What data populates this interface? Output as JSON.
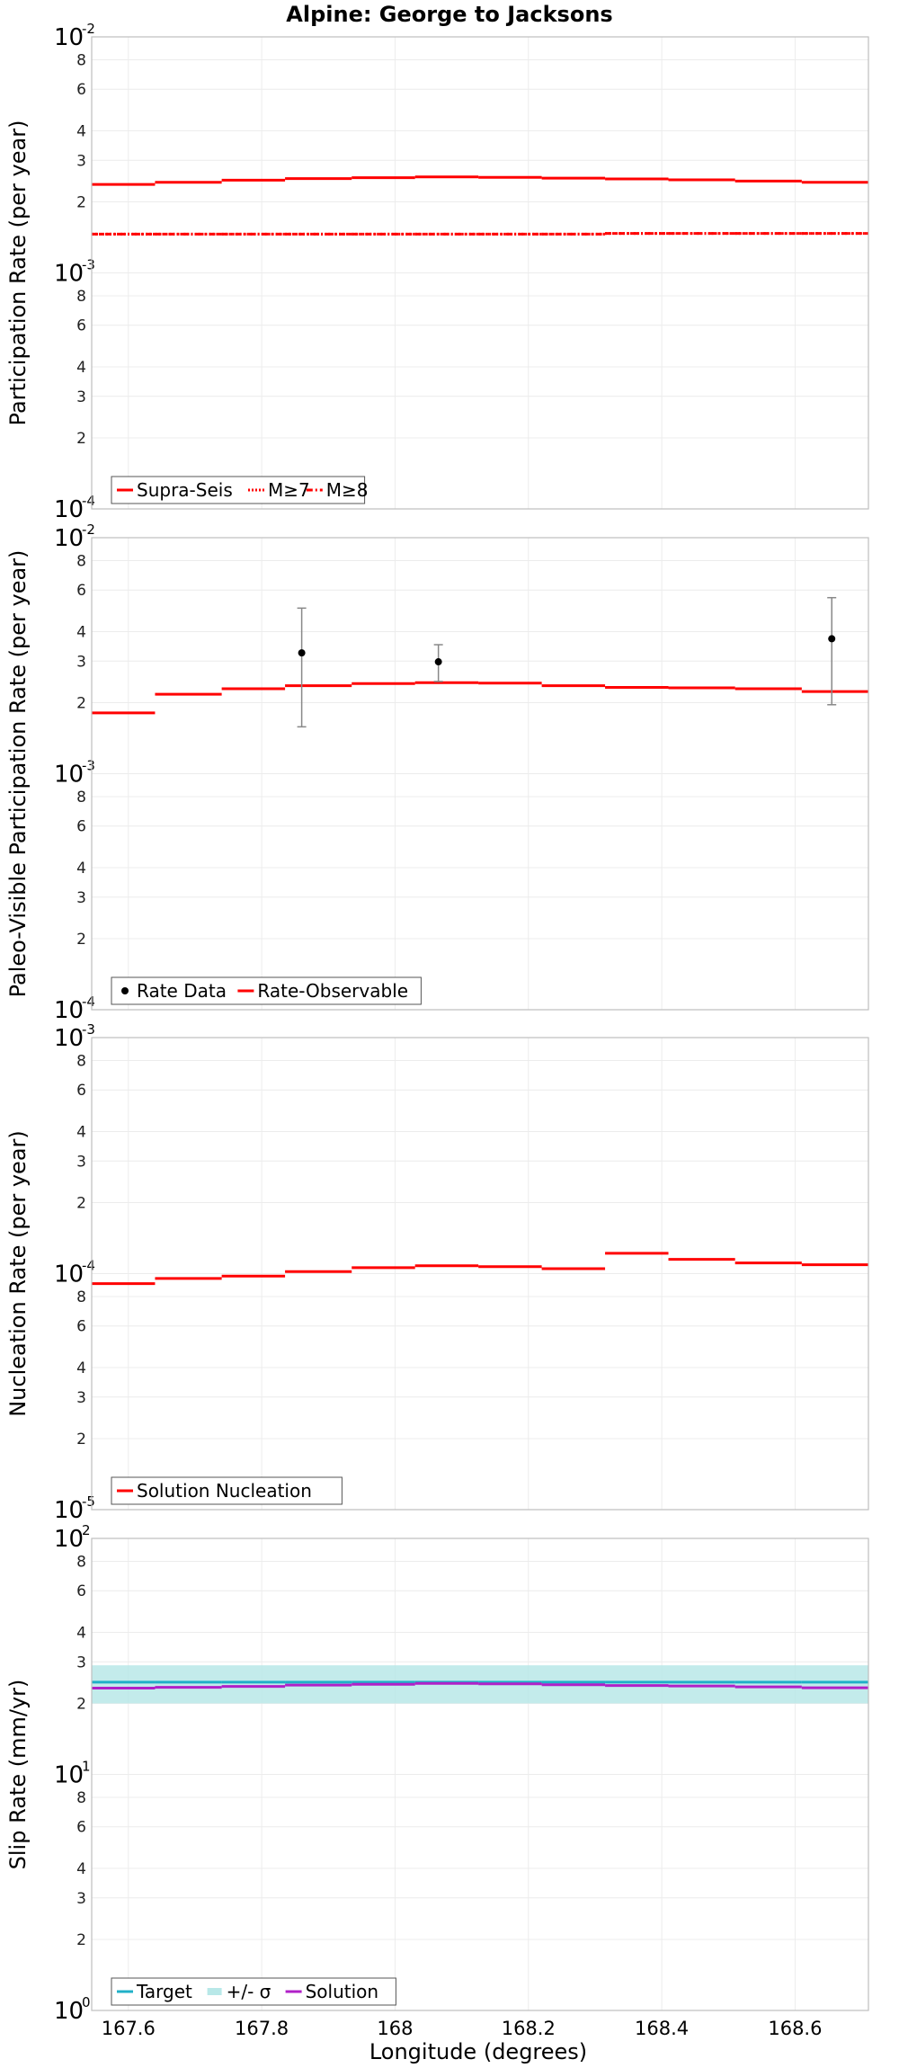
{
  "chart_data": [
    {
      "type": "step-line",
      "title": "Alpine: George to Jacksons",
      "ylabel": "Participation Rate (per year)",
      "xlabel": "",
      "xlim": [
        167.545,
        168.71
      ],
      "yscale": "log",
      "ylim": [
        0.0001,
        0.01
      ],
      "x_ticks": [
        "167.6",
        "167.8",
        "168",
        "168.2",
        "168.4",
        "168.6"
      ],
      "x_tick_values": [
        167.6,
        167.8,
        168.0,
        168.2,
        168.4,
        168.6
      ],
      "y_major_ticks": [
        {
          "base": "10",
          "exp": "-2"
        },
        {
          "base": "10",
          "exp": "-3"
        },
        {
          "base": "10",
          "exp": "-4"
        }
      ],
      "y_minor_ticks": [
        "8",
        "6",
        "4",
        "3",
        "2"
      ],
      "x_bins": [
        167.545,
        167.64,
        167.74,
        167.835,
        167.935,
        168.03,
        168.125,
        168.22,
        168.315,
        168.41,
        168.51,
        168.61,
        168.71
      ],
      "series": [
        {
          "name": "Supra-Seis",
          "style": "solid",
          "color": "#ff0000",
          "values": [
            0.00237,
            0.00242,
            0.00247,
            0.00251,
            0.00253,
            0.00255,
            0.00254,
            0.00252,
            0.0025,
            0.00248,
            0.00245,
            0.00242
          ]
        },
        {
          "name": "M≥7",
          "style": "dotted",
          "color": "#ff0000",
          "values": [
            0.00146,
            0.00146,
            0.00146,
            0.00146,
            0.00146,
            0.00146,
            0.00146,
            0.00146,
            0.00147,
            0.00147,
            0.00147,
            0.00147
          ]
        },
        {
          "name": "M≥8",
          "style": "dashdot",
          "color": "#ff0000",
          "values": [
            0.00146,
            0.00146,
            0.00146,
            0.00146,
            0.00146,
            0.00146,
            0.00146,
            0.00146,
            0.00147,
            0.00147,
            0.00147,
            0.00147
          ]
        }
      ],
      "legend": {
        "position": "bottom-left",
        "entries": [
          "Supra-Seis",
          "M≥7",
          "M≥8"
        ]
      }
    },
    {
      "type": "step-line",
      "ylabel": "Paleo-Visible Participation Rate (per year)",
      "xlabel": "",
      "xlim": [
        167.545,
        168.71
      ],
      "yscale": "log",
      "ylim": [
        0.0001,
        0.01
      ],
      "x_ticks": [
        "167.6",
        "167.8",
        "168",
        "168.2",
        "168.4",
        "168.6"
      ],
      "x_tick_values": [
        167.6,
        167.8,
        168.0,
        168.2,
        168.4,
        168.6
      ],
      "y_major_ticks": [
        {
          "base": "10",
          "exp": "-2"
        },
        {
          "base": "10",
          "exp": "-3"
        },
        {
          "base": "10",
          "exp": "-4"
        }
      ],
      "y_minor_ticks": [
        "8",
        "6",
        "4",
        "3",
        "2"
      ],
      "x_bins": [
        167.545,
        167.64,
        167.74,
        167.835,
        167.935,
        168.03,
        168.125,
        168.22,
        168.315,
        168.41,
        168.51,
        168.61,
        168.71
      ],
      "series": [
        {
          "name": "Rate-Observable",
          "style": "solid",
          "color": "#ff0000",
          "values": [
            0.00181,
            0.00217,
            0.00229,
            0.00236,
            0.00241,
            0.00243,
            0.00242,
            0.00236,
            0.00232,
            0.00231,
            0.00229,
            0.00223
          ]
        }
      ],
      "points": {
        "name": "Rate Data",
        "color": "#000000",
        "data": [
          {
            "x": 167.86,
            "y": 0.00325,
            "lo": 0.00158,
            "hi": 0.00503
          },
          {
            "x": 168.065,
            "y": 0.00298,
            "lo": 0.00246,
            "hi": 0.00352
          },
          {
            "x": 168.655,
            "y": 0.00373,
            "lo": 0.00196,
            "hi": 0.00557
          }
        ]
      },
      "legend": {
        "position": "bottom-left",
        "entries": [
          "Rate Data",
          "Rate-Observable"
        ]
      }
    },
    {
      "type": "step-line",
      "ylabel": "Nucleation Rate (per year)",
      "xlabel": "",
      "xlim": [
        167.545,
        168.71
      ],
      "yscale": "log",
      "ylim": [
        1e-05,
        0.001
      ],
      "x_ticks": [
        "167.6",
        "167.8",
        "168",
        "168.2",
        "168.4",
        "168.6"
      ],
      "x_tick_values": [
        167.6,
        167.8,
        168.0,
        168.2,
        168.4,
        168.6
      ],
      "y_major_ticks": [
        {
          "base": "10",
          "exp": "-3"
        },
        {
          "base": "10",
          "exp": "-4"
        },
        {
          "base": "10",
          "exp": "-5"
        }
      ],
      "y_minor_ticks": [
        "8",
        "6",
        "4",
        "3",
        "2"
      ],
      "x_bins": [
        167.545,
        167.64,
        167.74,
        167.835,
        167.935,
        168.03,
        168.125,
        168.22,
        168.315,
        168.41,
        168.51,
        168.61,
        168.71
      ],
      "series": [
        {
          "name": "Solution Nucleation",
          "style": "solid",
          "color": "#ff0000",
          "values": [
            9.07e-05,
            9.54e-05,
            9.76e-05,
            0.000102,
            0.000106,
            0.000108,
            0.000107,
            0.000105,
            0.000122,
            0.000115,
            0.000111,
            0.000109
          ]
        }
      ],
      "legend": {
        "position": "bottom-left",
        "entries": [
          "Solution Nucleation"
        ]
      }
    },
    {
      "type": "step-line",
      "ylabel": "Slip Rate (mm/yr)",
      "xlabel": "Longitude (degrees)",
      "xlim": [
        167.545,
        168.71
      ],
      "yscale": "log",
      "ylim": [
        1,
        100
      ],
      "x_ticks": [
        "167.6",
        "167.8",
        "168",
        "168.2",
        "168.4",
        "168.6"
      ],
      "x_tick_values": [
        167.6,
        167.8,
        168.0,
        168.2,
        168.4,
        168.6
      ],
      "y_major_ticks": [
        {
          "base": "10",
          "exp": "2"
        },
        {
          "base": "10",
          "exp": "1"
        },
        {
          "base": "10",
          "exp": "0"
        }
      ],
      "y_minor_ticks": [
        "8",
        "6",
        "4",
        "3",
        "2"
      ],
      "x_bins": [
        167.545,
        167.64,
        167.74,
        167.835,
        167.935,
        168.03,
        168.125,
        168.22,
        168.315,
        168.41,
        168.51,
        168.61,
        168.71
      ],
      "band": {
        "name": "+/- σ",
        "color": "#b8e8e8",
        "lo": 20.0,
        "hi": 29.0
      },
      "series": [
        {
          "name": "Target",
          "style": "solid",
          "color": "#20b0c8",
          "values": [
            24.6,
            24.6,
            24.6,
            24.6,
            24.6,
            24.6,
            24.6,
            24.6,
            24.6,
            24.6,
            24.6,
            24.6
          ]
        },
        {
          "name": "Solution",
          "style": "solid",
          "color": "#b020c8",
          "values": [
            23.2,
            23.4,
            23.6,
            23.9,
            24.1,
            24.3,
            24.2,
            24.0,
            23.8,
            23.7,
            23.5,
            23.3
          ]
        }
      ],
      "legend": {
        "position": "bottom-left",
        "entries": [
          "Target",
          "+/- σ",
          "Solution"
        ]
      }
    }
  ]
}
